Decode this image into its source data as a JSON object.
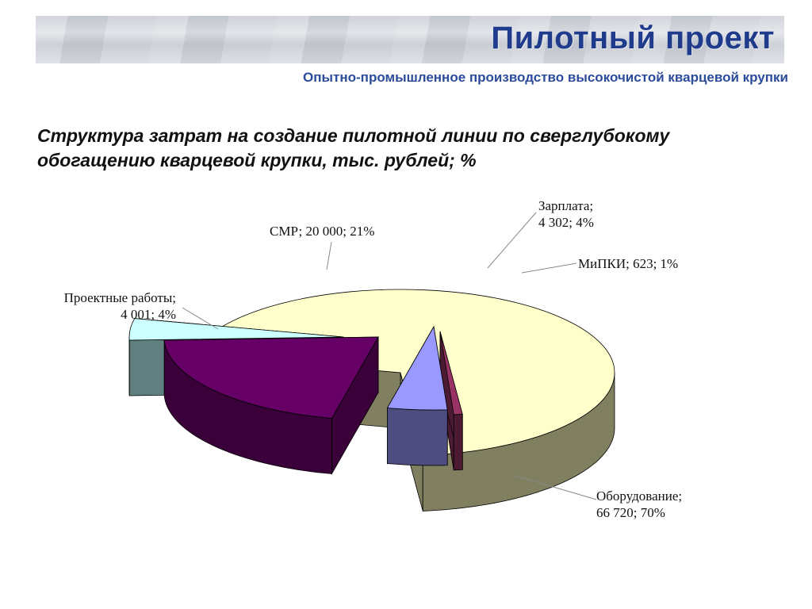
{
  "header": {
    "title": "Пилотный проект",
    "subtitle": "Опытно-промышленное производство высокочистой кварцевой крупки"
  },
  "chart_data": {
    "type": "pie",
    "title_lines": [
      "Структура затрат на создание пилотной линии по сверглубокому",
      "обогащению кварцевой крупки, тыс. рублей; %"
    ],
    "three_d": true,
    "exploded": true,
    "slices": [
      {
        "name": "Оборудование",
        "value": 66720,
        "percent": 70,
        "color": "#ffffcc",
        "side_color": "#807f5f",
        "label_lines": [
          "Оборудование;",
          "66 720; 70%"
        ]
      },
      {
        "name": "Проектные работы",
        "value": 4001,
        "percent": 4,
        "color": "#ccffff",
        "side_color": "#5f807f",
        "label_lines": [
          "Проектные работы;",
          "4 001; 4%"
        ]
      },
      {
        "name": "СМР",
        "value": 20000,
        "percent": 21,
        "color": "#660066",
        "side_color": "#3a003a",
        "label_lines": [
          "СМР; 20 000; 21%"
        ]
      },
      {
        "name": "Зарплата",
        "value": 4302,
        "percent": 4,
        "color": "#9999ff",
        "side_color": "#4d4d80",
        "label_lines": [
          "Зарплата;",
          "4 302; 4%"
        ]
      },
      {
        "name": "МиПКИ",
        "value": 623,
        "percent": 1,
        "color": "#993366",
        "side_color": "#4d1a33",
        "label_lines": [
          "МиПКИ; 623; 1%"
        ]
      }
    ]
  }
}
